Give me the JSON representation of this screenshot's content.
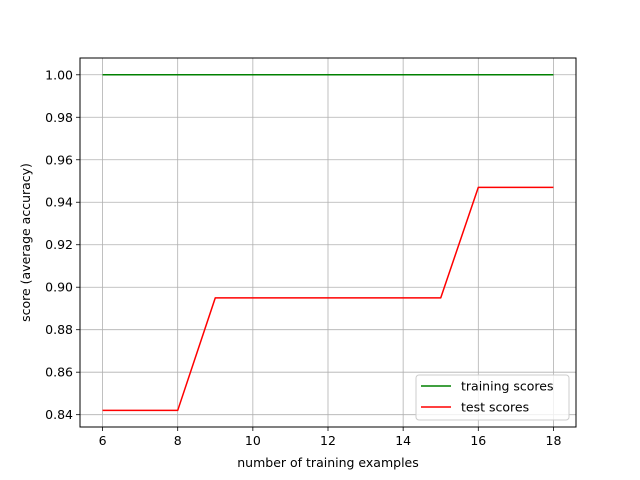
{
  "chart_data": {
    "type": "line",
    "title": "",
    "xlabel": "number of training examples",
    "ylabel": "score (average accuracy)",
    "xlim": [
      5.4,
      18.6
    ],
    "ylim": [
      0.8342,
      1.0079
    ],
    "xticks": [
      6,
      8,
      10,
      12,
      14,
      16,
      18
    ],
    "xtick_labels": [
      "6",
      "8",
      "10",
      "12",
      "14",
      "16",
      "18"
    ],
    "yticks": [
      0.84,
      0.86,
      0.88,
      0.9,
      0.92,
      0.94,
      0.96,
      0.98,
      1.0
    ],
    "ytick_labels": [
      "0.84",
      "0.86",
      "0.88",
      "0.90",
      "0.92",
      "0.94",
      "0.96",
      "0.98",
      "1.00"
    ],
    "grid": true,
    "legend_position": "lower-right",
    "series": [
      {
        "name": "training scores",
        "color": "#008000",
        "x": [
          6,
          7,
          8,
          9,
          10,
          11,
          12,
          13,
          14,
          15,
          16,
          17,
          18
        ],
        "y": [
          1.0,
          1.0,
          1.0,
          1.0,
          1.0,
          1.0,
          1.0,
          1.0,
          1.0,
          1.0,
          1.0,
          1.0,
          1.0
        ]
      },
      {
        "name": "test scores",
        "color": "#ff0000",
        "x": [
          6,
          7,
          8,
          9,
          10,
          11,
          12,
          13,
          14,
          15,
          16,
          17,
          18
        ],
        "y": [
          0.842,
          0.842,
          0.842,
          0.895,
          0.895,
          0.895,
          0.895,
          0.895,
          0.895,
          0.895,
          0.947,
          0.947,
          0.947
        ]
      }
    ]
  }
}
